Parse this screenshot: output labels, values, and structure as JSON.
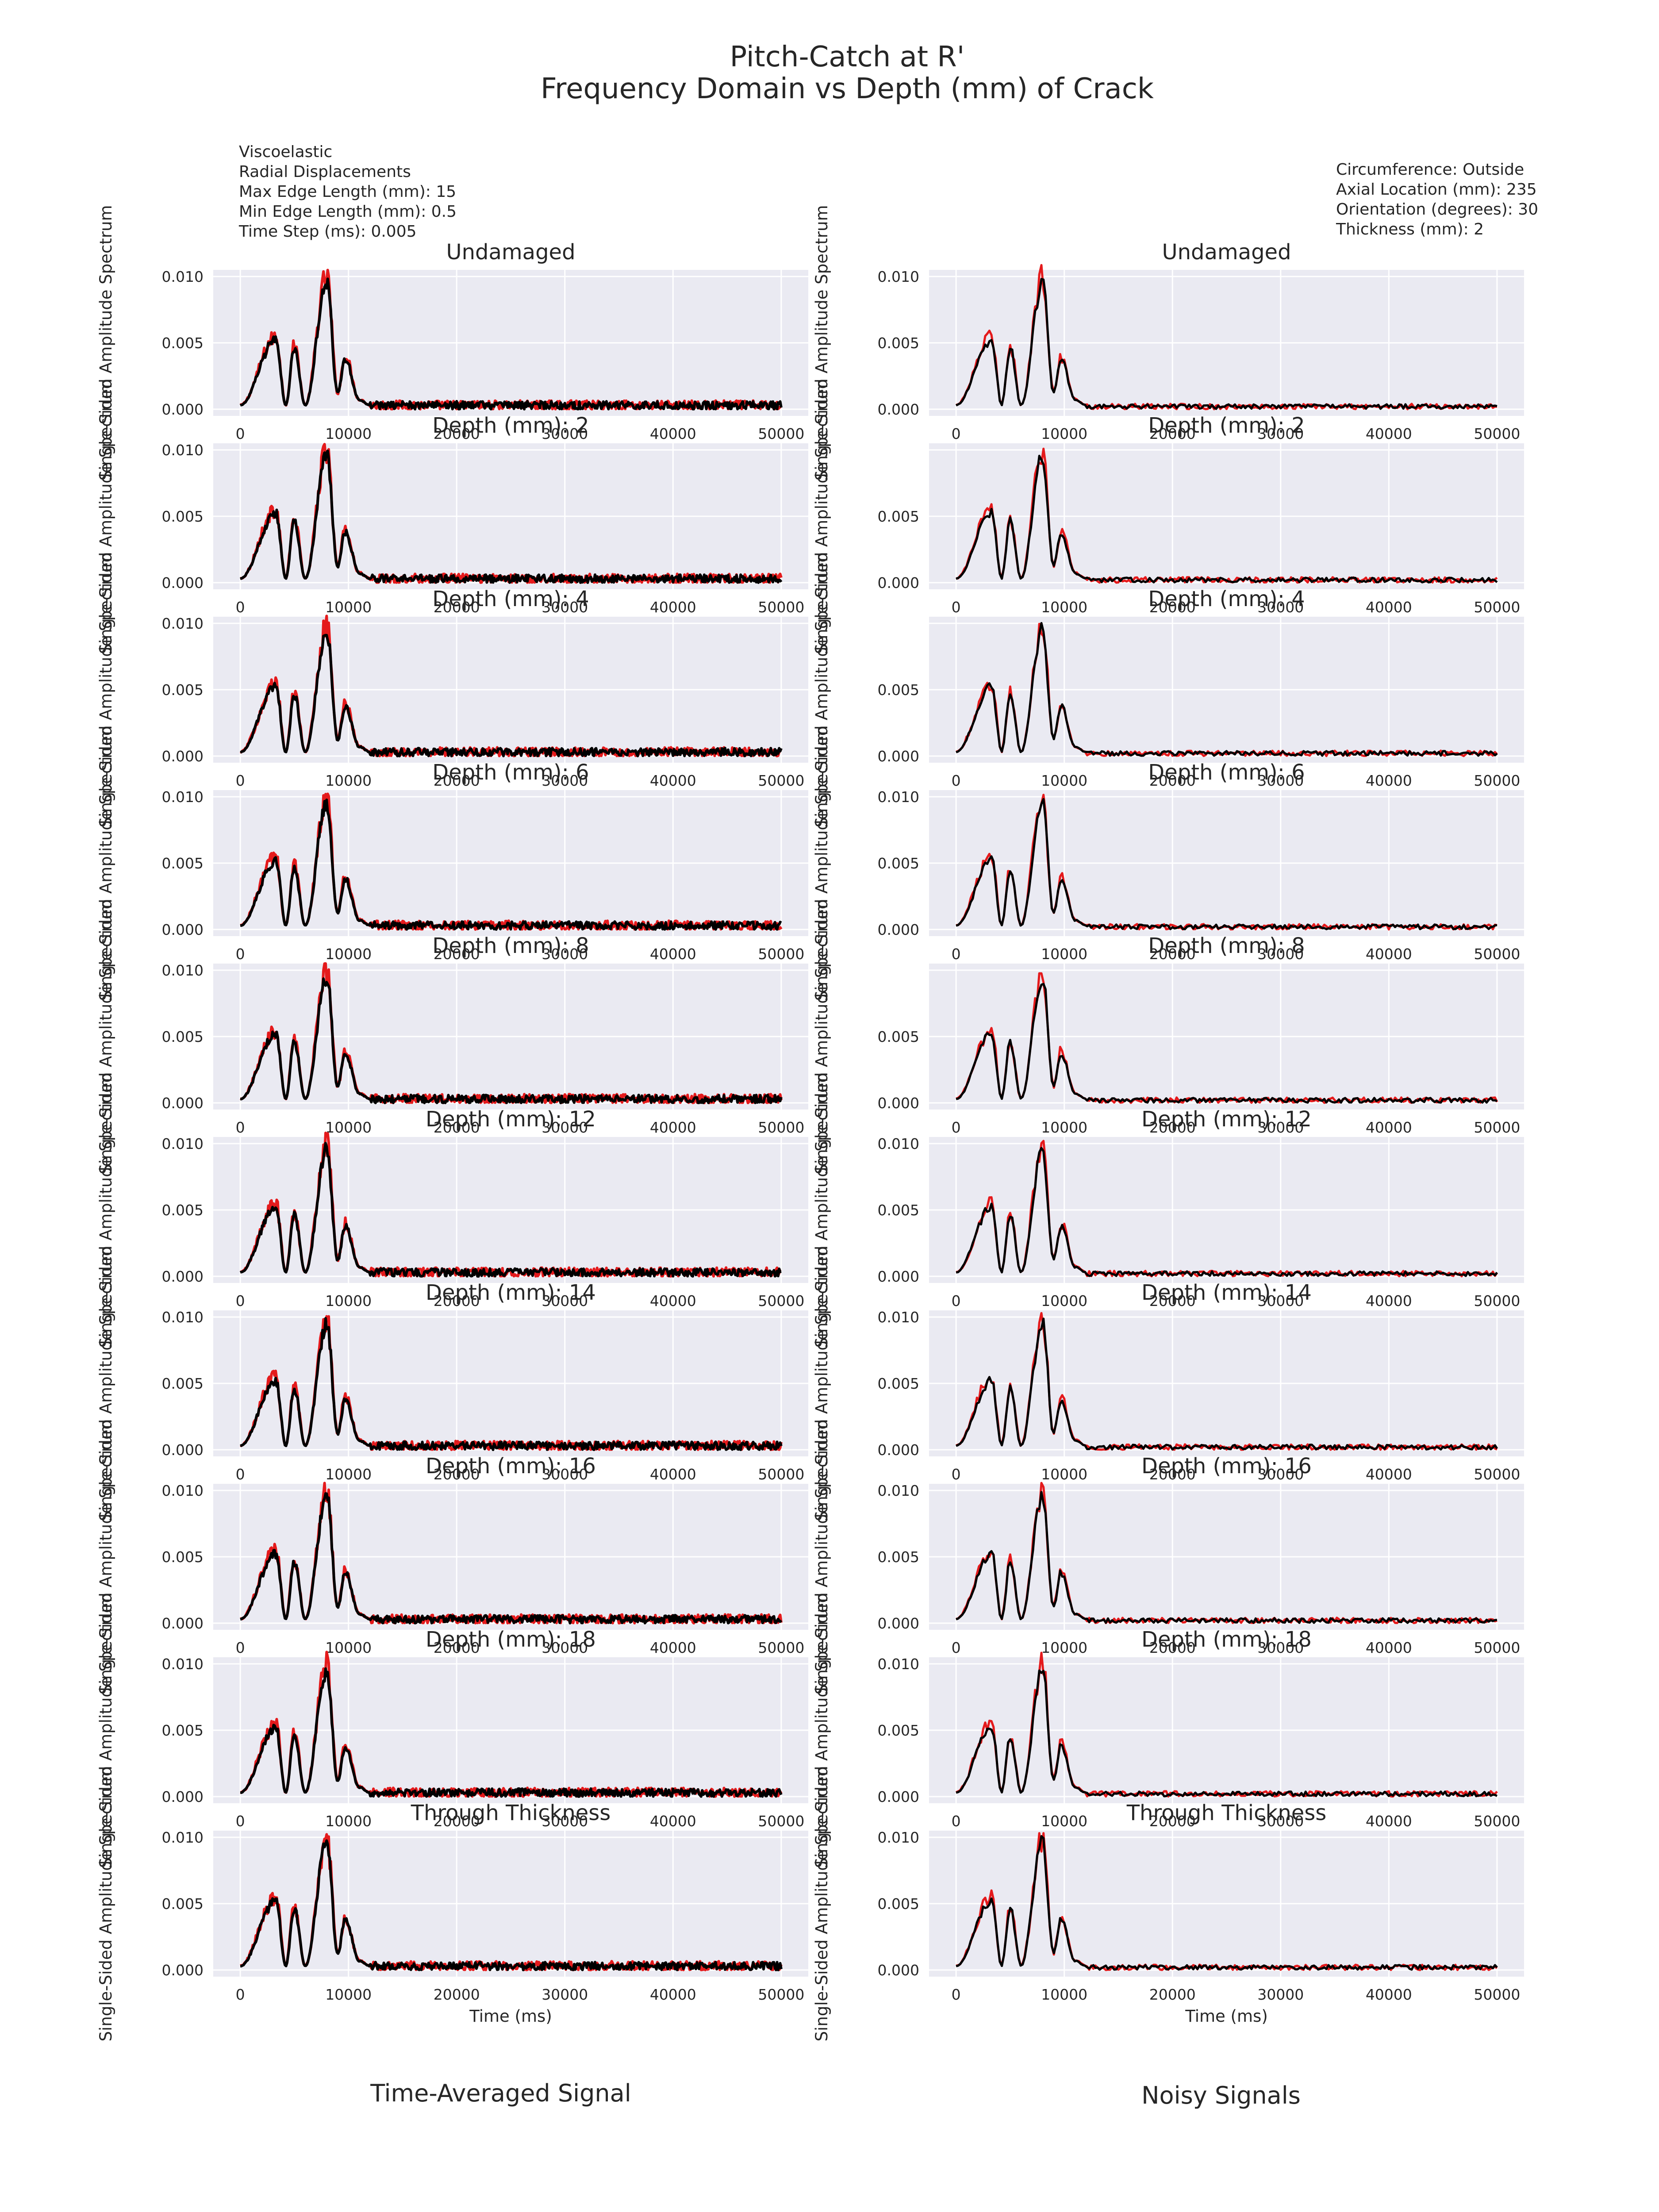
{
  "figure": {
    "suptitle_line1": "Pitch-Catch at R'",
    "suptitle_line2": "Frequency Domain vs Depth (mm) of Crack",
    "info_left": [
      "Viscoelastic",
      "Radial Displacements",
      "Max Edge Length (mm): 15",
      "Min Edge Length (mm): 0.5",
      "Time Step (ms): 0.005"
    ],
    "info_right": [
      "Circumference: Outside",
      "Axial Location (mm): 235",
      "Orientation (degrees): 30",
      "Thickness (mm): 2"
    ],
    "column_titles": [
      "Time-Averaged Signal",
      "Noisy Signals"
    ],
    "colors": {
      "red_series": "#e41a1c",
      "black_series": "#000000",
      "plot_background": "#eaeaf2",
      "grid": "#ffffff"
    }
  },
  "chart_data": {
    "type": "line",
    "layout": "10 rows x 2 columns of subplots",
    "panel_titles": [
      "Undamaged",
      "Depth (mm): 2",
      "Depth (mm): 4",
      "Depth (mm): 6",
      "Depth (mm): 8",
      "Depth (mm): 12",
      "Depth (mm): 14",
      "Depth (mm): 16",
      "Depth (mm): 18",
      "Through Thickness"
    ],
    "columns": [
      "Time-Averaged Signal",
      "Noisy Signals"
    ],
    "xlabel": "Time (ms)",
    "ylabel": "Single-Sided Amplitude Spectrum",
    "xlim": [
      -2500,
      52500
    ],
    "ylim": [
      -0.0005,
      0.0105
    ],
    "xticks": [
      0,
      10000,
      20000,
      30000,
      40000,
      50000
    ],
    "xtick_labels": [
      "0",
      "10000",
      "20000",
      "30000",
      "40000",
      "50000"
    ],
    "yticks": [
      0.0,
      0.005,
      0.01
    ],
    "ytick_labels": [
      "0.000",
      "0.005",
      "0.010"
    ],
    "grid": true,
    "series": [
      {
        "color": "red"
      },
      {
        "color": "black"
      }
    ],
    "envelope_peaks": [
      {
        "x": 3300,
        "y": 0.0052
      },
      {
        "x": 5000,
        "y": 0.0046
      },
      {
        "x": 8000,
        "y": 0.0095
      },
      {
        "x": 9700,
        "y": 0.0038
      }
    ],
    "envelope_troughs": [
      {
        "x": 4200,
        "y": 0.0003
      },
      {
        "x": 6000,
        "y": 0.0003
      },
      {
        "x": 9000,
        "y": 0.0012
      }
    ],
    "noise_floor_after_x": 12000,
    "noise_floor_level": 0.0003
  }
}
